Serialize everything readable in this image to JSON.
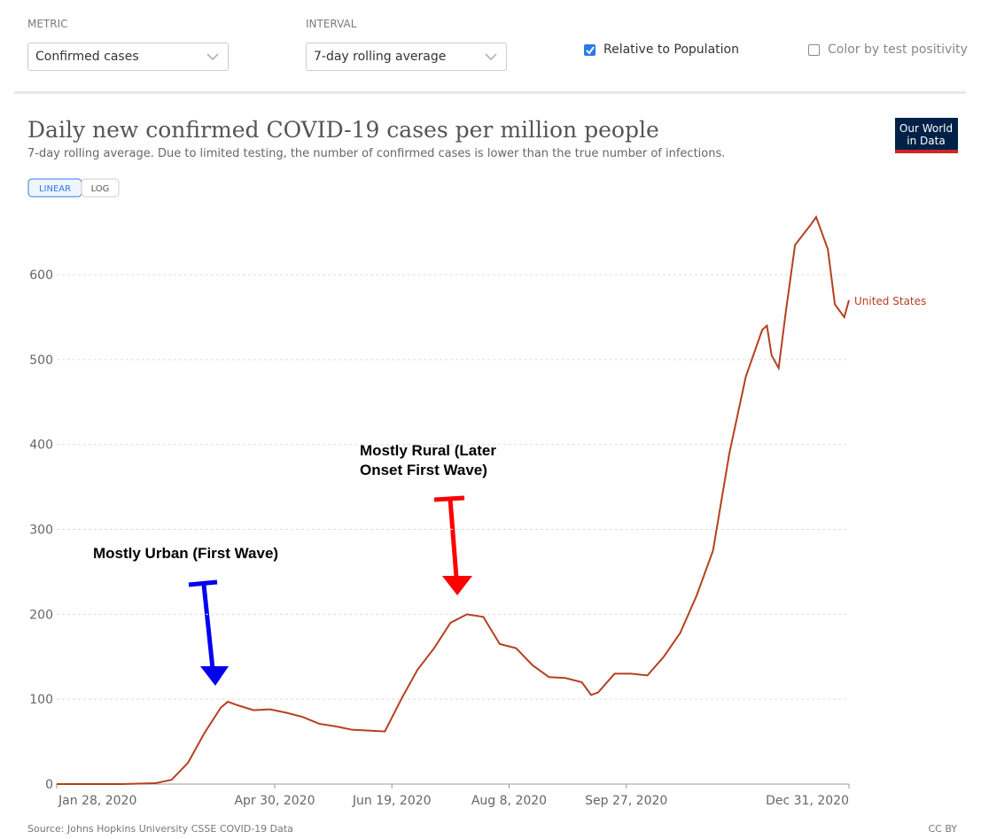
{
  "controls": {
    "metric_label": "METRIC",
    "metric_value": "Confirmed cases",
    "interval_label": "INTERVAL",
    "interval_value": "7-day rolling average",
    "relative": "Relative to Population",
    "positivity": "Color by test positivity"
  },
  "logo": [
    "Our World",
    "in Data"
  ],
  "chart_data": {
    "type": "line",
    "title": "Daily new confirmed COVID-19 cases per million people",
    "subtitle": "7-day rolling average. Due to limited testing, the number of confirmed cases is lower than the true number of infections.",
    "scale_buttons": [
      "LINEAR",
      "LOG"
    ],
    "source": "Source: Johns Hopkins University CSSE COVID-19 Data",
    "license": "CC BY",
    "annotations": [
      "Mostly Urban (First Wave)",
      "Mostly Rural (Later",
      "Onset First Wave)"
    ],
    "x": [
      "2020-01-28",
      "2020-02-11",
      "2020-02-25",
      "2020-03-10",
      "2020-03-17",
      "2020-03-24",
      "2020-03-31",
      "2020-04-07",
      "2020-04-10",
      "2020-04-14",
      "2020-04-21",
      "2020-04-28",
      "2020-05-05",
      "2020-05-12",
      "2020-05-19",
      "2020-05-26",
      "2020-06-02",
      "2020-06-09",
      "2020-06-16",
      "2020-06-23",
      "2020-06-30",
      "2020-07-07",
      "2020-07-14",
      "2020-07-21",
      "2020-07-28",
      "2020-08-04",
      "2020-08-11",
      "2020-08-18",
      "2020-08-25",
      "2020-09-01",
      "2020-09-08",
      "2020-09-12",
      "2020-09-15",
      "2020-09-22",
      "2020-09-29",
      "2020-10-06",
      "2020-10-13",
      "2020-10-20",
      "2020-10-27",
      "2020-11-03",
      "2020-11-10",
      "2020-11-17",
      "2020-11-24",
      "2020-11-26",
      "2020-11-28",
      "2020-12-01",
      "2020-12-04",
      "2020-12-08",
      "2020-12-15",
      "2020-12-17",
      "2020-12-22",
      "2020-12-25",
      "2020-12-29",
      "2020-12-31"
    ],
    "series": [
      {
        "name": "United States",
        "color": "#b5401f",
        "values": [
          0,
          0,
          0,
          1,
          5,
          25,
          60,
          90,
          97,
          93,
          87,
          88,
          84,
          79,
          71,
          68,
          64,
          63,
          62,
          100,
          135,
          160,
          190,
          200,
          197,
          165,
          160,
          140,
          126,
          125,
          120,
          105,
          108,
          130,
          130,
          128,
          150,
          178,
          222,
          275,
          390,
          480,
          535,
          540,
          505,
          490,
          555,
          635,
          660,
          668,
          630,
          565,
          550,
          570
        ]
      }
    ],
    "xlim": [
      "2020-01-28",
      "2020-12-31"
    ],
    "xticks": [
      {
        "value": "2020-01-28",
        "label": "Jan 28, 2020"
      },
      {
        "value": "2020-04-30",
        "label": "Apr 30, 2020"
      },
      {
        "value": "2020-06-19",
        "label": "Jun 19, 2020"
      },
      {
        "value": "2020-08-08",
        "label": "Aug 8, 2020"
      },
      {
        "value": "2020-09-27",
        "label": "Sep 27, 2020"
      },
      {
        "value": "2020-12-31",
        "label": "Dec 31, 2020"
      }
    ],
    "ylim": [
      0,
      670
    ],
    "yticks": [
      0,
      100,
      200,
      300,
      400,
      500,
      600
    ],
    "grid": true
  }
}
